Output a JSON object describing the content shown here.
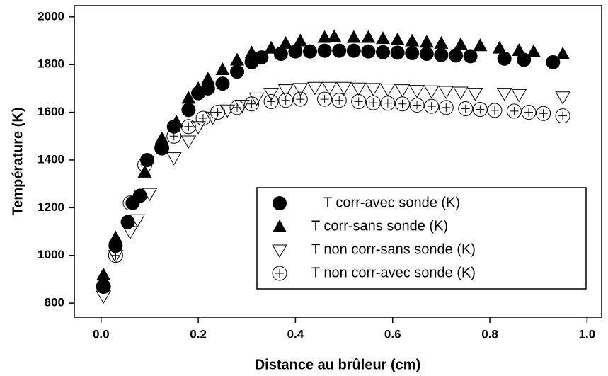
{
  "chart_data": {
    "type": "scatter",
    "xlabel": "Distance au brûleur (cm)",
    "ylabel": "Température (K)",
    "xlim": [
      -0.055,
      1.03
    ],
    "ylim": [
      741,
      2047
    ],
    "xticks": [
      {
        "value": 0,
        "label": "0.0"
      },
      0.2,
      0.4,
      0.6,
      0.8,
      {
        "value": 1,
        "label": "1.0"
      }
    ],
    "yticks": [
      800,
      1000,
      1200,
      1400,
      1600,
      1800,
      2000
    ],
    "legend": "lower right",
    "series": [
      {
        "name": "T corr-avec sonde (K)",
        "color": "#000000",
        "marker": "circle",
        "x": [
          0.005,
          0.03,
          0.055,
          0.065,
          0.08,
          0.095,
          0.125,
          0.15,
          0.18,
          0.2,
          0.22,
          0.25,
          0.28,
          0.31,
          0.33,
          0.37,
          0.4,
          0.43,
          0.46,
          0.49,
          0.52,
          0.55,
          0.58,
          0.61,
          0.64,
          0.67,
          0.7,
          0.73,
          0.76,
          0.83,
          0.87,
          0.93
        ],
        "values": [
          870,
          1040,
          1140,
          1220,
          1250,
          1400,
          1450,
          1540,
          1610,
          1680,
          1700,
          1720,
          1770,
          1810,
          1830,
          1845,
          1855,
          1855,
          1858,
          1858,
          1858,
          1855,
          1852,
          1850,
          1848,
          1845,
          1840,
          1838,
          1835,
          1825,
          1820,
          1810
        ]
      },
      {
        "name": "T corr-sans sonde (K)",
        "color": "#000000",
        "marker": "triangle",
        "x": [
          0.005,
          0.03,
          0.09,
          0.125,
          0.155,
          0.18,
          0.2,
          0.22,
          0.25,
          0.28,
          0.31,
          0.35,
          0.38,
          0.41,
          0.46,
          0.48,
          0.52,
          0.55,
          0.58,
          0.61,
          0.64,
          0.67,
          0.7,
          0.74,
          0.78,
          0.82,
          0.86,
          0.89,
          0.95
        ],
        "values": [
          920,
          1075,
          1350,
          1490,
          1560,
          1660,
          1700,
          1740,
          1780,
          1820,
          1850,
          1870,
          1890,
          1900,
          1915,
          1918,
          1915,
          1915,
          1910,
          1905,
          1900,
          1895,
          1890,
          1885,
          1880,
          1870,
          1860,
          1855,
          1845
        ]
      },
      {
        "name": "T non corr-sans sonde (K)",
        "color": "#000000",
        "marker": "triangle-down",
        "x": [
          0.005,
          0.03,
          0.06,
          0.075,
          0.1,
          0.15,
          0.18,
          0.2,
          0.23,
          0.26,
          0.29,
          0.32,
          0.35,
          0.38,
          0.41,
          0.44,
          0.47,
          0.5,
          0.53,
          0.56,
          0.59,
          0.62,
          0.65,
          0.68,
          0.71,
          0.74,
          0.77,
          0.83,
          0.86,
          0.95
        ],
        "values": [
          830,
          1000,
          1100,
          1150,
          1260,
          1410,
          1480,
          1540,
          1580,
          1610,
          1630,
          1660,
          1680,
          1695,
          1700,
          1705,
          1705,
          1705,
          1702,
          1700,
          1698,
          1695,
          1692,
          1690,
          1688,
          1685,
          1680,
          1680,
          1675,
          1665
        ]
      },
      {
        "name": "T non corr-avec sonde (K)",
        "color": "#000000",
        "marker": "circle-plus",
        "x": [
          0.005,
          0.03,
          0.06,
          0.09,
          0.125,
          0.15,
          0.18,
          0.21,
          0.24,
          0.28,
          0.31,
          0.35,
          0.38,
          0.41,
          0.46,
          0.49,
          0.53,
          0.56,
          0.59,
          0.62,
          0.65,
          0.68,
          0.71,
          0.75,
          0.78,
          0.81,
          0.85,
          0.88,
          0.91,
          0.95
        ],
        "values": [
          870,
          1000,
          1220,
          1380,
          1450,
          1500,
          1540,
          1575,
          1600,
          1620,
          1635,
          1645,
          1650,
          1655,
          1655,
          1650,
          1645,
          1640,
          1638,
          1635,
          1630,
          1625,
          1620,
          1615,
          1612,
          1608,
          1605,
          1600,
          1595,
          1585
        ]
      }
    ]
  }
}
